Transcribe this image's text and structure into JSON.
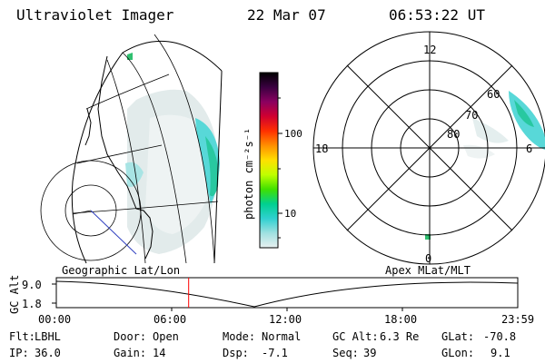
{
  "header": {
    "instrument": "Ultraviolet Imager",
    "date": "22 Mar 07",
    "time": "06:53:22 UT"
  },
  "geo_panel": {
    "label": "Geographic Lat/Lon"
  },
  "colorbar": {
    "label": "photon cm⁻²s⁻¹",
    "ticks": [
      "100",
      "10"
    ],
    "colors": [
      "#000000",
      "#3a0040",
      "#8a0060",
      "#d00030",
      "#ff3000",
      "#ff9000",
      "#ffe000",
      "#c0ff00",
      "#40e000",
      "#00d090",
      "#30d0d0",
      "#a0e0e0",
      "#e8f0f0"
    ]
  },
  "polar_panel": {
    "label": "Apex MLat/MLT",
    "mlt_labels": [
      "12",
      "18",
      "6",
      "0"
    ],
    "mlat_labels": [
      "60",
      "70",
      "80"
    ]
  },
  "alt_plot": {
    "ylabel": "GC Alt",
    "yticks": [
      "9.0",
      "1.8"
    ],
    "xticks": [
      "00:00",
      "06:00",
      "12:00",
      "18:00",
      "23:59"
    ],
    "current_time_marker": "06:53",
    "marker_color": "#ff0000"
  },
  "status": {
    "flt_label": "Flt:",
    "flt_value": "LBHL",
    "ip_label": "IP:",
    "ip_value": "36.0",
    "door_label": "Door:",
    "door_value": "Open",
    "gain_label": "Gain:",
    "gain_value": "14",
    "mode_label": "Mode:",
    "mode_value": "Normal",
    "dsp_label": "Dsp:",
    "dsp_value": "-7.1",
    "gcalt_label": "GC Alt:",
    "gcalt_value": "6.3 Re",
    "seq_label": "Seq:",
    "seq_value": "39",
    "glat_label": "GLat:",
    "glat_value": "-70.8",
    "glon_label": "GLon:",
    "glon_value": "9.1"
  }
}
